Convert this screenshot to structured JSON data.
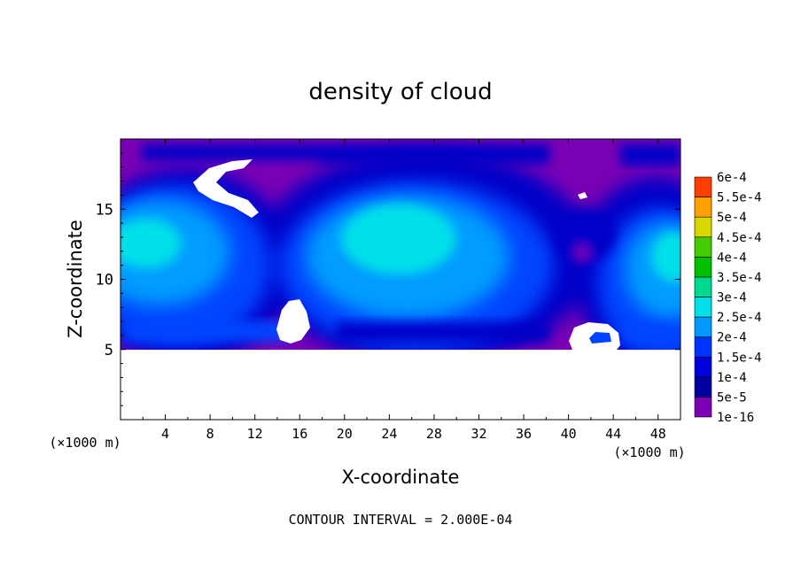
{
  "chart_data": {
    "type": "heatmap",
    "title": "density of cloud",
    "xlabel": "X-coordinate",
    "ylabel": "Z-coordinate",
    "x_units_label": "(×1000 m)",
    "x_units_label_right": "(×1000 m)",
    "footer": "CONTOUR INTERVAL = 2.000E-04",
    "xlim": [
      0,
      50
    ],
    "ylim": [
      0,
      20
    ],
    "x_ticks": [
      4,
      8,
      12,
      16,
      20,
      24,
      28,
      32,
      36,
      40,
      44,
      48
    ],
    "y_ticks": [
      5,
      10,
      15
    ],
    "data_zmin": 5,
    "colorbar": {
      "levels": [
        "1e-16",
        "5e-5",
        "1e-4",
        "1.5e-4",
        "2e-4",
        "2.5e-4",
        "3e-4",
        "3.5e-4",
        "4e-4",
        "4.5e-4",
        "5e-4",
        "5.5e-4",
        "6e-4"
      ],
      "colors": [
        "#7a00b4",
        "#0000a0",
        "#0000dc",
        "#0033ff",
        "#0099ff",
        "#00e0e8",
        "#00d890",
        "#00c000",
        "#44cc00",
        "#d8d800",
        "#ffa000",
        "#ff4000",
        "#ff8080"
      ]
    },
    "regions": [
      {
        "name": "background",
        "level": "1e-16"
      },
      {
        "name": "cell-left",
        "x_center": 4,
        "z_center": 12.5,
        "peak_level": "2e-4"
      },
      {
        "name": "cell-middle",
        "x_center": 25,
        "z_center": 11.5,
        "peak_level": "2e-4"
      },
      {
        "name": "cell-right",
        "x_center": 48,
        "z_center": 12,
        "peak_level": "2e-4"
      }
    ]
  }
}
